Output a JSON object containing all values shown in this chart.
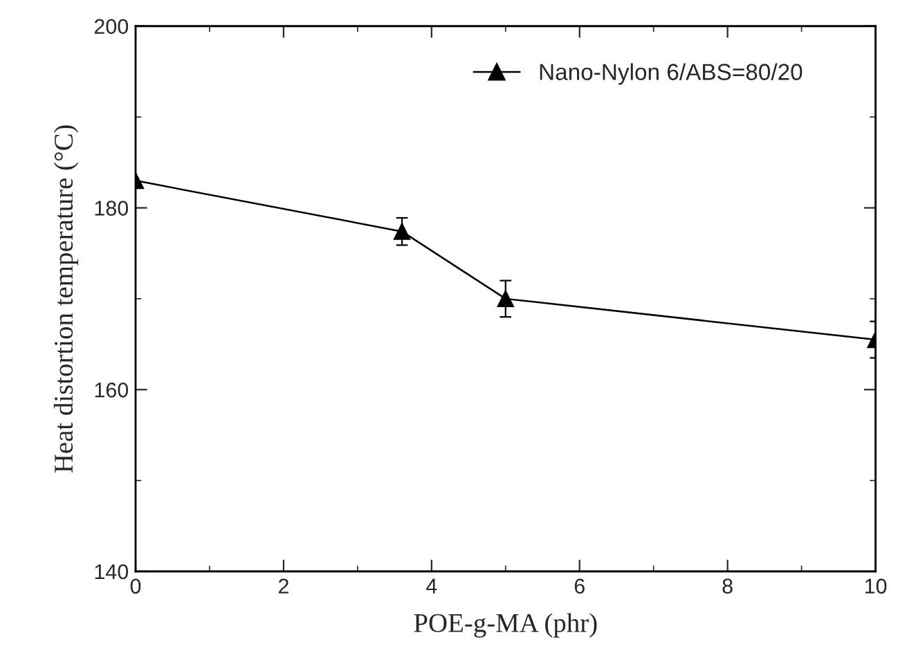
{
  "chart_data": {
    "type": "line",
    "xlabel": "POE-g-MA (phr)",
    "ylabel": "Heat distortion temperature (°C)",
    "x": [
      0,
      3.6,
      5,
      10
    ],
    "series": [
      {
        "name": "Nano-Nylon 6/ABS=80/20",
        "color": "#000000",
        "values": [
          183,
          177.4,
          170,
          165.5
        ],
        "errors": [
          null,
          1.5,
          2,
          2
        ]
      }
    ],
    "xlim": [
      0,
      10
    ],
    "ylim": [
      140,
      200
    ],
    "xticks": [
      0,
      {
        "value": 1,
        "label": null
      },
      2,
      {
        "value": 3,
        "label": null
      },
      4,
      {
        "value": 5,
        "label": null
      },
      6,
      {
        "value": 7,
        "label": null
      },
      8,
      {
        "value": 9,
        "label": null
      },
      10
    ],
    "yticks": [
      140,
      {
        "value": 150,
        "label": null
      },
      160,
      {
        "value": 170,
        "label": null
      },
      180,
      {
        "value": 190,
        "label": null
      },
      200
    ],
    "marker": "triangle",
    "line_style": "solid",
    "legend": "top right",
    "grid": false
  }
}
